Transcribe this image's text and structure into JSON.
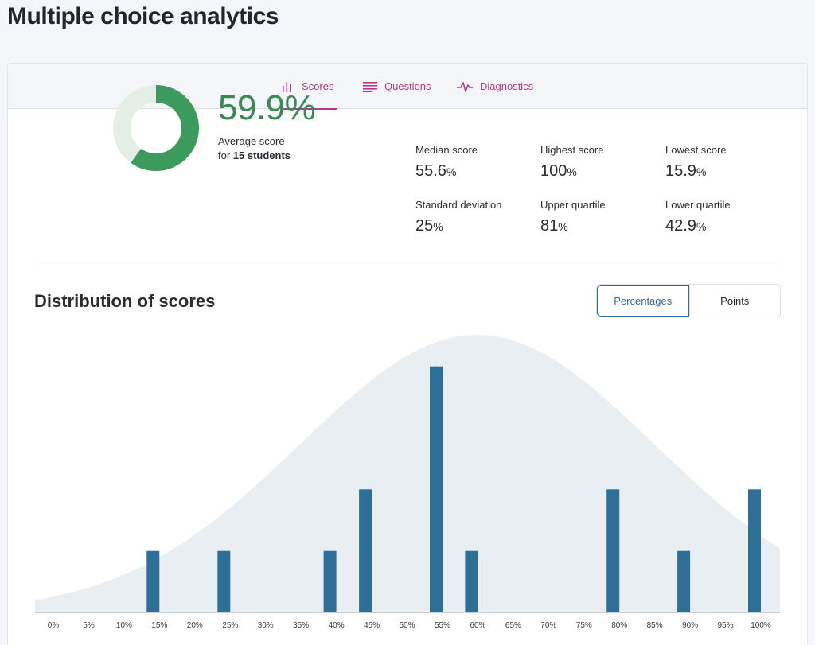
{
  "page": {
    "title": "Multiple choice analytics"
  },
  "tabs": [
    {
      "label": "Scores",
      "icon": "bar-chart-icon",
      "active": true
    },
    {
      "label": "Questions",
      "icon": "list-lines-icon",
      "active": false
    },
    {
      "label": "Diagnostics",
      "icon": "pulse-icon",
      "active": false
    }
  ],
  "summary": {
    "average_value": "59.9%",
    "average_fraction": 0.599,
    "average_label": "Average score",
    "for_prefix": "for",
    "students_text": "15 students"
  },
  "stats": [
    {
      "label": "Median score",
      "value": "55.6",
      "unit": "%"
    },
    {
      "label": "Highest score",
      "value": "100",
      "unit": "%"
    },
    {
      "label": "Lowest score",
      "value": "15.9",
      "unit": "%"
    },
    {
      "label": "Standard deviation",
      "value": "25",
      "unit": "%"
    },
    {
      "label": "Upper quartile",
      "value": "81",
      "unit": "%"
    },
    {
      "label": "Lower quartile",
      "value": "42.9",
      "unit": "%"
    }
  ],
  "distribution": {
    "title": "Distribution of scores",
    "toggle": {
      "selected": "Percentages",
      "other": "Points"
    }
  },
  "colors": {
    "accent": "#b03a8f",
    "donut_fill": "#3d9a5d",
    "donut_track": "#e3efe6",
    "bar": "#2e6f98",
    "curve": "#e8eef2"
  },
  "chart_data": {
    "type": "bar",
    "categories": [
      "0%",
      "5%",
      "10%",
      "15%",
      "20%",
      "25%",
      "30%",
      "35%",
      "40%",
      "45%",
      "50%",
      "55%",
      "60%",
      "65%",
      "70%",
      "75%",
      "80%",
      "85%",
      "90%",
      "95%",
      "100%"
    ],
    "values": [
      0,
      0,
      0,
      1,
      0,
      1,
      0,
      0,
      1,
      2,
      0,
      4,
      1,
      0,
      0,
      0,
      2,
      0,
      1,
      0,
      2
    ],
    "ylim": [
      0,
      4.5
    ],
    "overlay": {
      "type": "normal-curve",
      "mean": 59.9,
      "sd": 25
    }
  }
}
